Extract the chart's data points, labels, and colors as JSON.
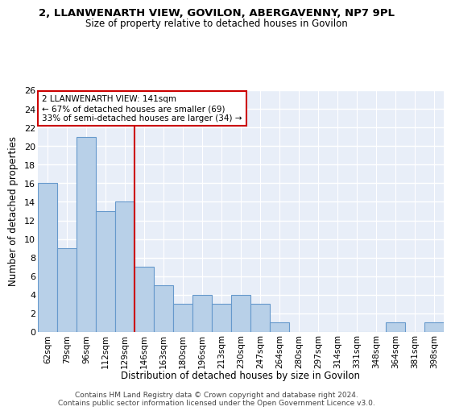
{
  "title": "2, LLANWENARTH VIEW, GOVILON, ABERGAVENNY, NP7 9PL",
  "subtitle": "Size of property relative to detached houses in Govilon",
  "xlabel": "Distribution of detached houses by size in Govilon",
  "ylabel": "Number of detached properties",
  "categories": [
    "62sqm",
    "79sqm",
    "96sqm",
    "112sqm",
    "129sqm",
    "146sqm",
    "163sqm",
    "180sqm",
    "196sqm",
    "213sqm",
    "230sqm",
    "247sqm",
    "264sqm",
    "280sqm",
    "297sqm",
    "314sqm",
    "331sqm",
    "348sqm",
    "364sqm",
    "381sqm",
    "398sqm"
  ],
  "values": [
    16,
    9,
    21,
    13,
    14,
    7,
    5,
    3,
    4,
    3,
    4,
    3,
    1,
    0,
    0,
    0,
    0,
    0,
    1,
    0,
    1
  ],
  "bar_color": "#b8d0e8",
  "bar_edge_color": "#6699cc",
  "background_color": "#e8eef8",
  "grid_color": "#ffffff",
  "vline_x_index": 4.5,
  "vline_color": "#cc0000",
  "annotation_line1": "2 LLANWENARTH VIEW: 141sqm",
  "annotation_line2": "← 67% of detached houses are smaller (69)",
  "annotation_line3": "33% of semi-detached houses are larger (34) →",
  "annotation_box_color": "#cc0000",
  "ylim": [
    0,
    26
  ],
  "yticks": [
    0,
    2,
    4,
    6,
    8,
    10,
    12,
    14,
    16,
    18,
    20,
    22,
    24,
    26
  ],
  "footer1": "Contains HM Land Registry data © Crown copyright and database right 2024.",
  "footer2": "Contains public sector information licensed under the Open Government Licence v3.0."
}
